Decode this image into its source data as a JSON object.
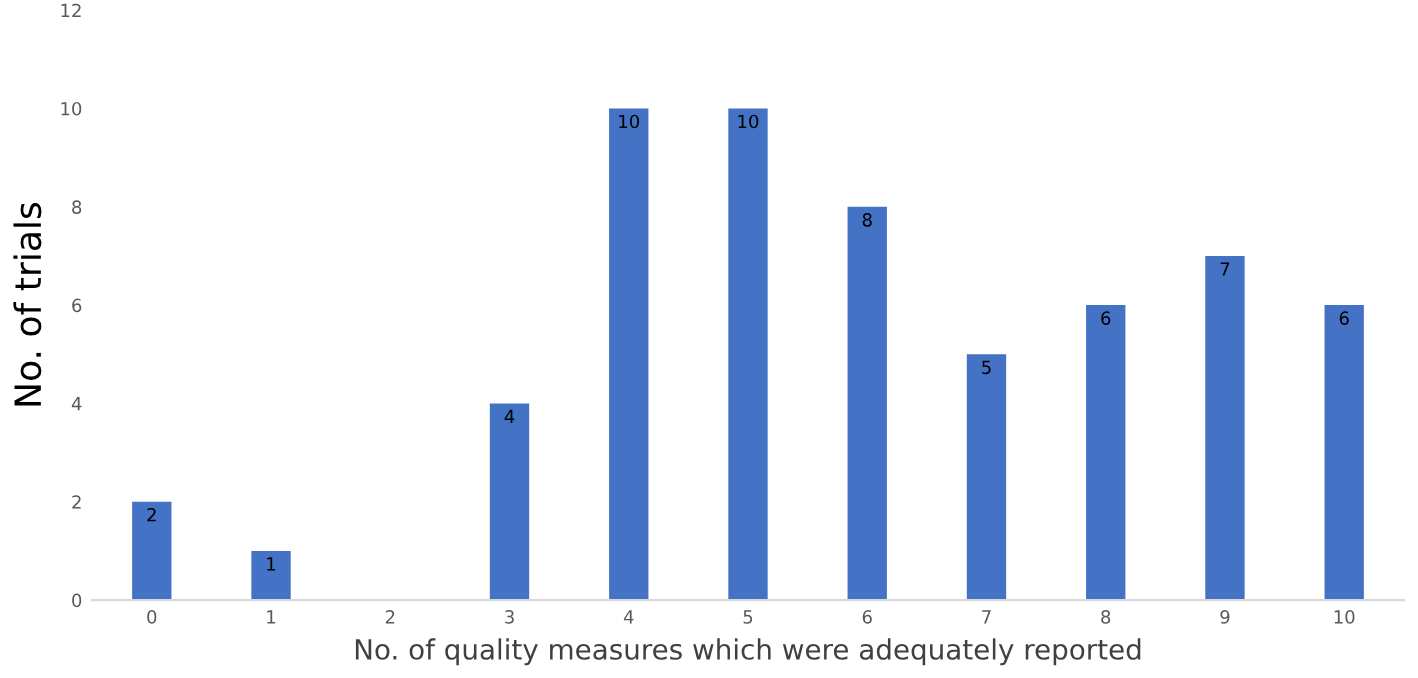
{
  "chart_data": {
    "type": "bar",
    "xlabel": "No. of quality measures which were adequately reported",
    "ylabel": "No. of trials",
    "categories": [
      "0",
      "1",
      "2",
      "3",
      "4",
      "5",
      "6",
      "7",
      "8",
      "9",
      "10"
    ],
    "values": [
      2,
      1,
      0,
      4,
      10,
      10,
      8,
      5,
      6,
      7,
      6
    ],
    "value_labels": [
      "2",
      "1",
      null,
      "4",
      "10",
      "10",
      "8",
      "5",
      "6",
      "7",
      "6"
    ],
    "color": "#4472c4",
    "ylim": [
      0,
      12
    ],
    "yticks": [
      0,
      2,
      4,
      6,
      8,
      10,
      12
    ],
    "grid": false
  }
}
